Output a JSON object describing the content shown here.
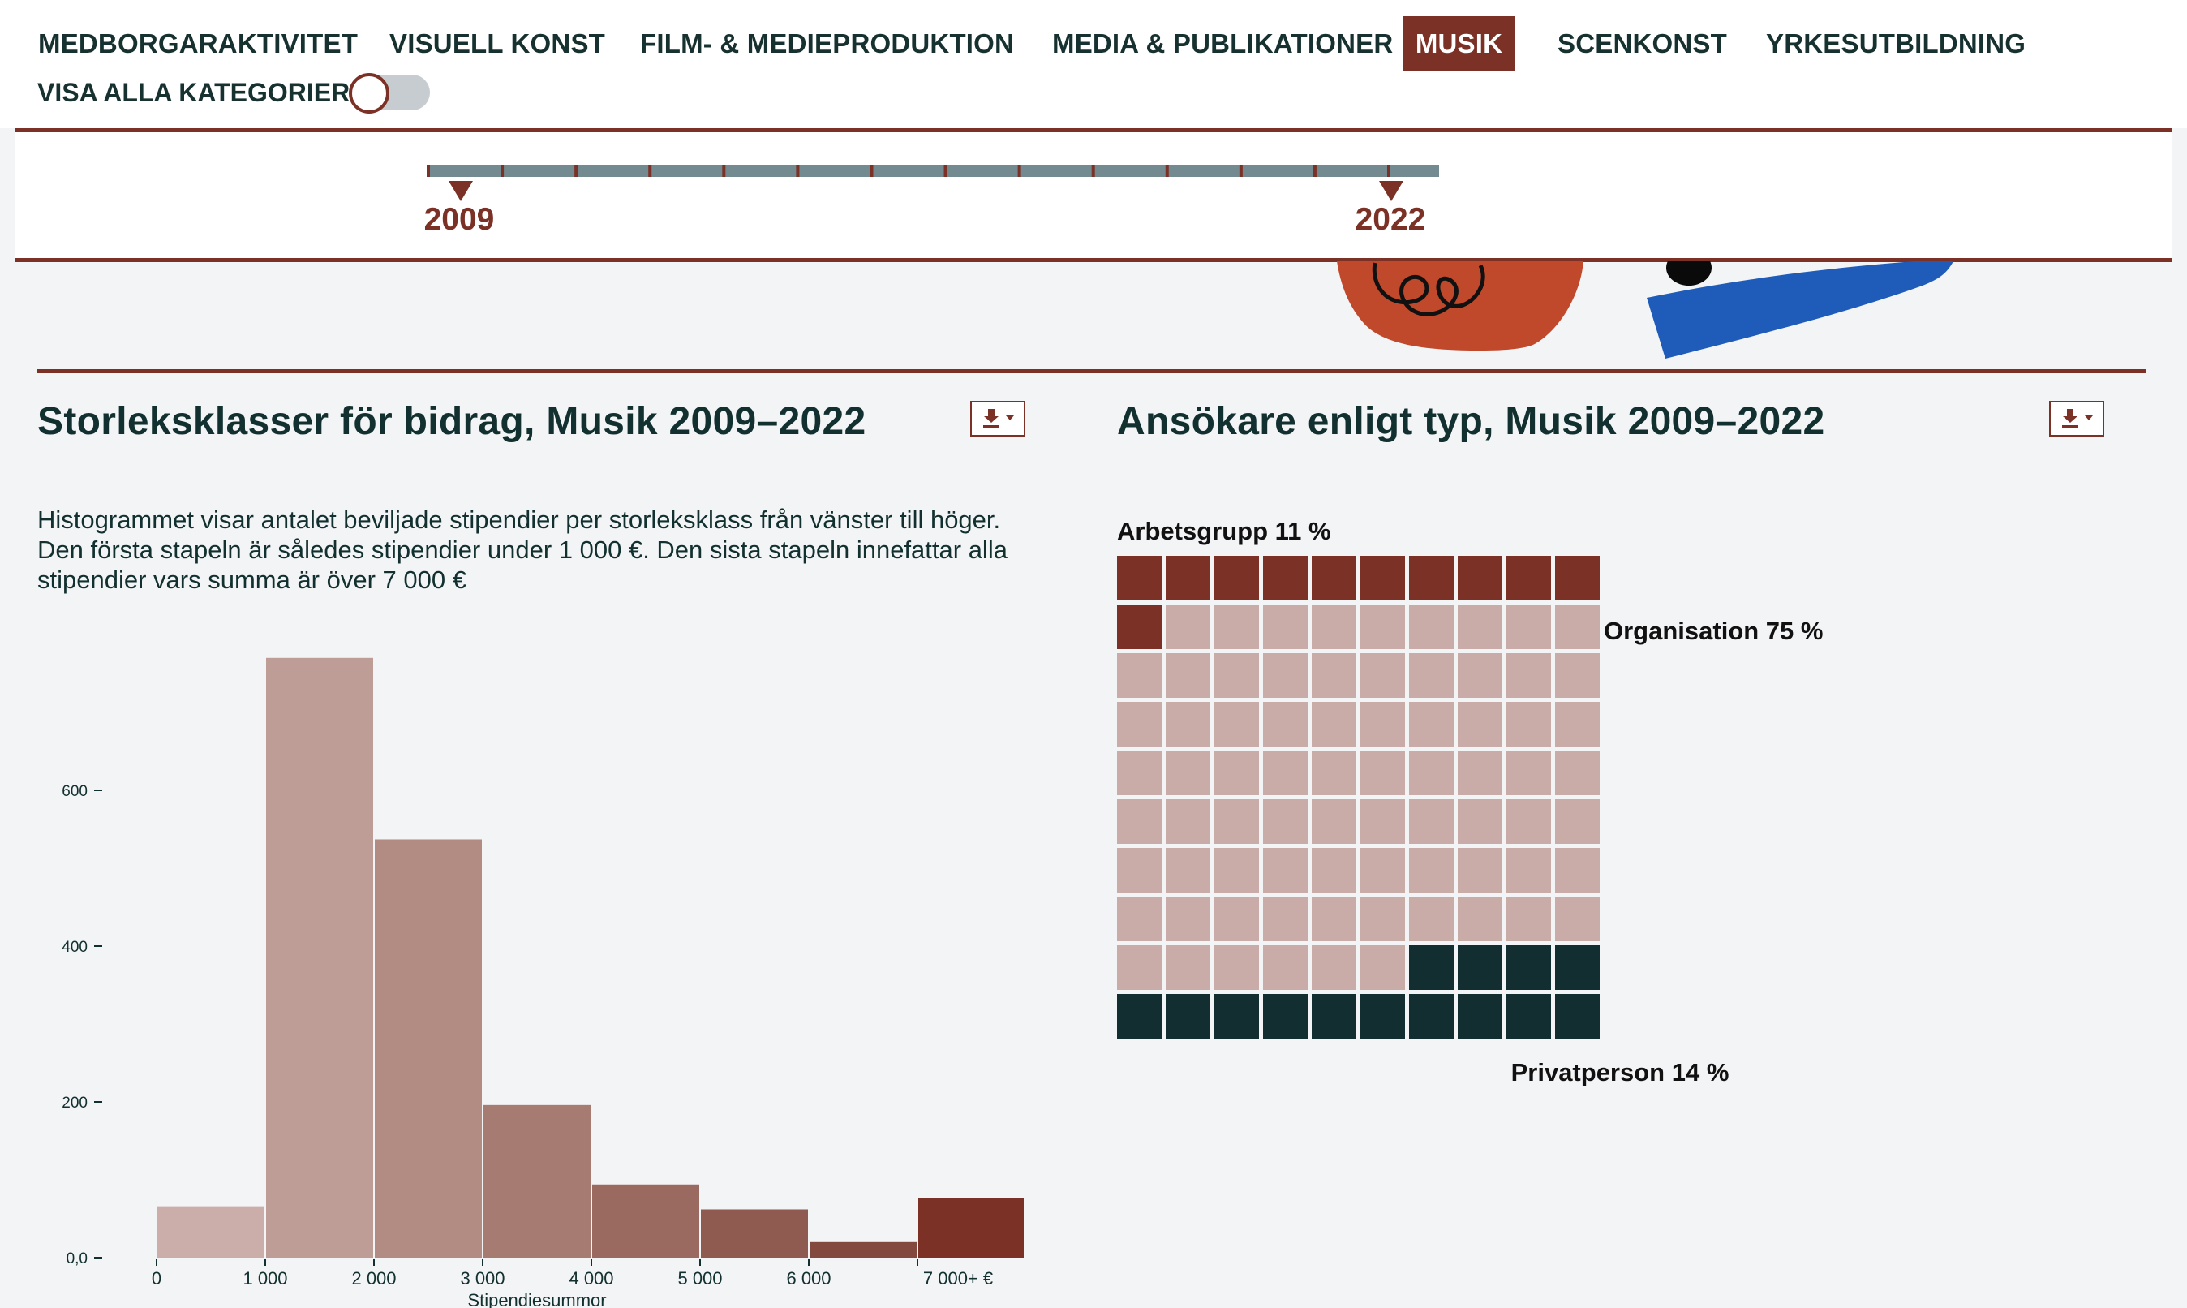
{
  "nav": {
    "items": [
      {
        "label": "MEDBORGARAKTIVITET",
        "active": false
      },
      {
        "label": "VISUELL KONST",
        "active": false
      },
      {
        "label": "FILM- & MEDIEPRODUKTION",
        "active": false
      },
      {
        "label": "MEDIA & PUBLIKATIONER",
        "active": false
      },
      {
        "label": "MUSIK",
        "active": true
      },
      {
        "label": "SCENKONST",
        "active": false
      },
      {
        "label": "YRKESUTBILDNING",
        "active": false
      }
    ],
    "show_all_label": "VISA ALLA KATEGORIER:",
    "show_all_on": false
  },
  "timeline": {
    "start_label": "2009",
    "end_label": "2022",
    "start_year": 2009,
    "end_year": 2022
  },
  "colors": {
    "accent": "#7b3125",
    "dark": "#12302f",
    "nav_text": "#16312f",
    "timeline_bar": "#738a90",
    "waffle_arbetsgrupp": "#7b3125",
    "waffle_organisation": "#c9aca7",
    "waffle_privatperson": "#132e30"
  },
  "icons": {
    "download": "download-icon",
    "dropdown": "caret-down-icon"
  },
  "histogram": {
    "title": "Storleksklasser för bidrag, Musik 2009–2022",
    "description": "Histogrammet visar antalet beviljade stipendier per storleksklass från vänster till höger. Den första stapeln är således stipendier under 1 000 €. Den sista stapeln innefattar alla stipendier vars summa är över 7 000 €"
  },
  "waffle": {
    "title": "Ansökare enligt typ, Musik 2009–2022"
  },
  "chart_data": [
    {
      "type": "bar",
      "title": "Storleksklasser för bidrag, Musik 2009–2022",
      "xlabel": "Stipendiesummor",
      "ylabel": "",
      "x_tick_labels": [
        "0",
        "1 000",
        "2 000",
        "3 000",
        "4 000",
        "5 000",
        "6 000",
        "7 000+ €"
      ],
      "y_tick_labels": [
        "0,0",
        "200",
        "400",
        "600"
      ],
      "y_ticks": [
        0,
        200,
        400,
        600
      ],
      "ylim": [
        0,
        800
      ],
      "bins": [
        {
          "from": 0,
          "to": 1000,
          "value": 66
        },
        {
          "from": 1000,
          "to": 2000,
          "value": 770
        },
        {
          "from": 2000,
          "to": 3000,
          "value": 537
        },
        {
          "from": 3000,
          "to": 4000,
          "value": 196
        },
        {
          "from": 4000,
          "to": 5000,
          "value": 94
        },
        {
          "from": 5000,
          "to": 6000,
          "value": 62
        },
        {
          "from": 6000,
          "to": 7000,
          "value": 20
        },
        {
          "from": 7000,
          "to": 8000,
          "value": 77
        }
      ],
      "bar_colors": [
        "#cbaea9",
        "#be9d96",
        "#b28b83",
        "#a67b72",
        "#9a6a60",
        "#8f5a4f",
        "#83493e",
        "#7b3125"
      ],
      "grid": false,
      "legend": "none"
    },
    {
      "type": "waffle",
      "title": "Ansökare enligt typ, Musik 2009–2022",
      "grid_size": [
        10,
        10
      ],
      "series": [
        {
          "name": "Arbetsgrupp",
          "value": 11,
          "label": "Arbetsgrupp 11 %"
        },
        {
          "name": "Organisation",
          "value": 75,
          "label": "Organisation 75 %"
        },
        {
          "name": "Privatperson",
          "value": 14,
          "label": "Privatperson 14 %"
        }
      ],
      "legend": "labels beside cells"
    }
  ]
}
